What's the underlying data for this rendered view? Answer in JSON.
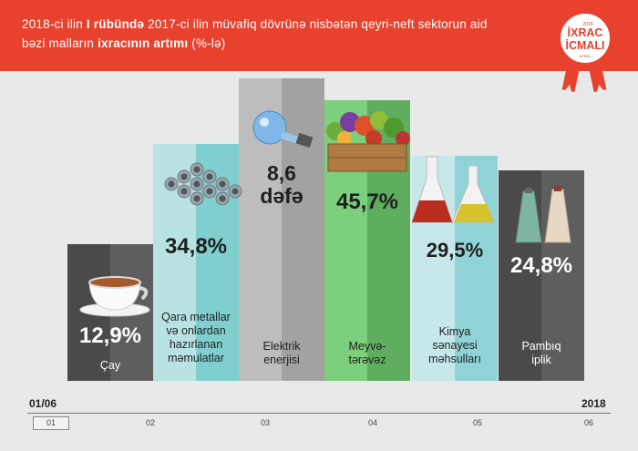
{
  "header": {
    "title_p1": "2018-ci ilin ",
    "title_bold1": "I rübündə",
    "title_p2": " 2017-ci ilin müvafiq dövrünə nisbətən qeyri-neft sektorun aid bəzi malların ",
    "title_bold2": "ixracının artımı",
    "title_p3": " (%-lə)"
  },
  "badge": {
    "year": "2018",
    "line1": "İXRAC",
    "line2": "İCMALI",
    "sub": "APREL"
  },
  "colors": {
    "header": "#e8412e",
    "background": "#e9e9e9"
  },
  "chart_data": {
    "type": "bar",
    "bars": [
      {
        "value_label": "12,9%",
        "value": 12.9,
        "category": [
          "Çay"
        ],
        "color_left": "#4a4a4a",
        "color_right": "#5e5e5e",
        "value_color": "#ffffff",
        "cat_color": "#ffffff",
        "illustration": "tea-cup-icon"
      },
      {
        "value_label": "34,8%",
        "value": 34.8,
        "category": [
          "Qara metallar",
          "və onlardan",
          "hazırlanan",
          "məmulatlar"
        ],
        "color_left": "#b9e3e3",
        "color_right": "#7fcfcf",
        "value_color": "#1f1f1f",
        "cat_color": "#1f1f1f",
        "illustration": "metal-pipes-icon"
      },
      {
        "value_label": "8,6 dəfə",
        "value": null,
        "category": [
          "Elektrik",
          "enerjisi"
        ],
        "color_left": "#bdbdbd",
        "color_right": "#a2a2a2",
        "value_color": "#1f1f1f",
        "cat_color": "#1f1f1f",
        "illustration": "light-bulb-icon"
      },
      {
        "value_label": "45,7%",
        "value": 45.7,
        "category": [
          "Meyvə-",
          "tərəvəz"
        ],
        "color_left": "#7ccf7c",
        "color_right": "#5fae5f",
        "value_color": "#1f1f1f",
        "cat_color": "#1f1f1f",
        "illustration": "vegetable-crate-icon"
      },
      {
        "value_label": "29,5%",
        "value": 29.5,
        "category": [
          "Kimya",
          "sənayesi",
          "məhsulları"
        ],
        "color_left": "#c6e8ea",
        "color_right": "#8fd3d7",
        "value_color": "#1f1f1f",
        "cat_color": "#1f1f1f",
        "illustration": "chemistry-flasks-icon"
      },
      {
        "value_label": "24,8%",
        "value": 24.8,
        "category": [
          "Pambıq",
          "iplik"
        ],
        "color_left": "#4a4a4a",
        "color_right": "#5e5e5e",
        "value_color": "#ffffff",
        "cat_color": "#ffffff",
        "illustration": "yarn-spools-icon"
      }
    ]
  },
  "timeline": {
    "start_label": "01/06",
    "end_label": "2018",
    "ticks": [
      "01",
      "02",
      "03",
      "04",
      "05",
      "06"
    ]
  }
}
